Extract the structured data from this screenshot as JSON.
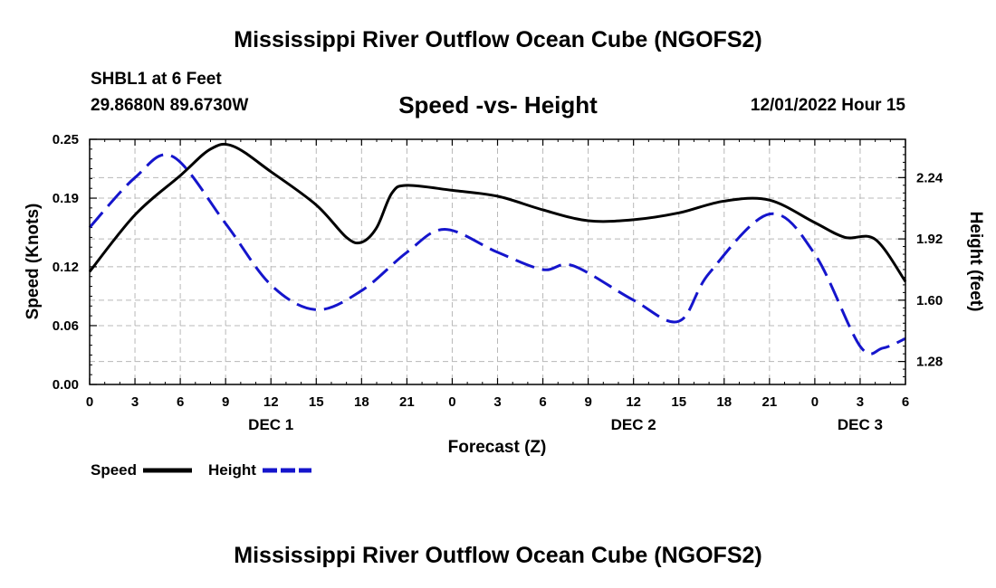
{
  "header": {
    "title": "Mississippi River Outflow Ocean Cube (NGOFS2)",
    "station": "SHBL1 at 6 Feet",
    "coords": "29.8680N  89.6730W",
    "datetime": "12/01/2022 Hour 15",
    "footer_title": "Mississippi River Outflow Ocean Cube (NGOFS2)"
  },
  "chart_data": {
    "type": "line",
    "title": "Speed -vs- Height",
    "xlabel": "Forecast (Z)",
    "ylabel_left": "Speed (Knots)",
    "ylabel_right": "Height (feet)",
    "x_hours_range": [
      0,
      54
    ],
    "x_tick_hours": [
      0,
      3,
      6,
      9,
      12,
      15,
      18,
      21,
      24,
      27,
      30,
      33,
      36,
      39,
      42,
      45,
      48,
      51,
      54
    ],
    "x_tick_labels": [
      "0",
      "3",
      "6",
      "9",
      "12",
      "15",
      "18",
      "21",
      "0",
      "3",
      "6",
      "9",
      "12",
      "15",
      "18",
      "21",
      "0",
      "3",
      "6"
    ],
    "day_labels": [
      {
        "label": "DEC 1",
        "hour": 12
      },
      {
        "label": "DEC 2",
        "hour": 36
      },
      {
        "label": "DEC 3",
        "hour": 51
      }
    ],
    "left_axis": {
      "range": [
        0,
        0.25
      ],
      "ticks": [
        0.0,
        0.06,
        0.12,
        0.19,
        0.25
      ],
      "tick_labels": [
        "0.00",
        "0.06",
        "0.12",
        "0.19",
        "0.25"
      ]
    },
    "right_axis": {
      "range": [
        1.16,
        2.44
      ],
      "ticks": [
        1.28,
        1.6,
        1.92,
        2.24
      ],
      "tick_labels": [
        "1.28",
        "1.60",
        "1.92",
        "2.24"
      ]
    },
    "grid": true,
    "series": [
      {
        "name": "Speed",
        "axis": "left",
        "color": "#000000",
        "dash": "solid",
        "points": [
          [
            0,
            0.115
          ],
          [
            3,
            0.173
          ],
          [
            6,
            0.213
          ],
          [
            8,
            0.24
          ],
          [
            9.5,
            0.243
          ],
          [
            12,
            0.217
          ],
          [
            15,
            0.183
          ],
          [
            17,
            0.15
          ],
          [
            18,
            0.145
          ],
          [
            19,
            0.16
          ],
          [
            20,
            0.195
          ],
          [
            21,
            0.203
          ],
          [
            24,
            0.198
          ],
          [
            27,
            0.192
          ],
          [
            30,
            0.178
          ],
          [
            33,
            0.167
          ],
          [
            36,
            0.168
          ],
          [
            39,
            0.175
          ],
          [
            42,
            0.187
          ],
          [
            45,
            0.188
          ],
          [
            48,
            0.165
          ],
          [
            50,
            0.15
          ],
          [
            52,
            0.148
          ],
          [
            54,
            0.105
          ]
        ]
      },
      {
        "name": "Height",
        "axis": "right",
        "color": "#1515cc",
        "dash": "dashed",
        "points": [
          [
            0,
            1.98
          ],
          [
            3,
            2.24
          ],
          [
            5.5,
            2.35
          ],
          [
            9,
            2.0
          ],
          [
            12,
            1.68
          ],
          [
            15,
            1.55
          ],
          [
            18,
            1.65
          ],
          [
            21,
            1.85
          ],
          [
            23.5,
            1.97
          ],
          [
            27,
            1.85
          ],
          [
            30,
            1.76
          ],
          [
            32,
            1.78
          ],
          [
            36,
            1.6
          ],
          [
            39,
            1.49
          ],
          [
            41,
            1.74
          ],
          [
            45,
            2.05
          ],
          [
            48,
            1.84
          ],
          [
            51,
            1.36
          ],
          [
            52.5,
            1.35
          ],
          [
            54,
            1.4
          ]
        ]
      }
    ],
    "legend": [
      {
        "label": "Speed",
        "color": "#000000",
        "dash": "solid"
      },
      {
        "label": "Height",
        "color": "#1515cc",
        "dash": "dashed"
      }
    ],
    "legend_position": "bottom-left"
  }
}
